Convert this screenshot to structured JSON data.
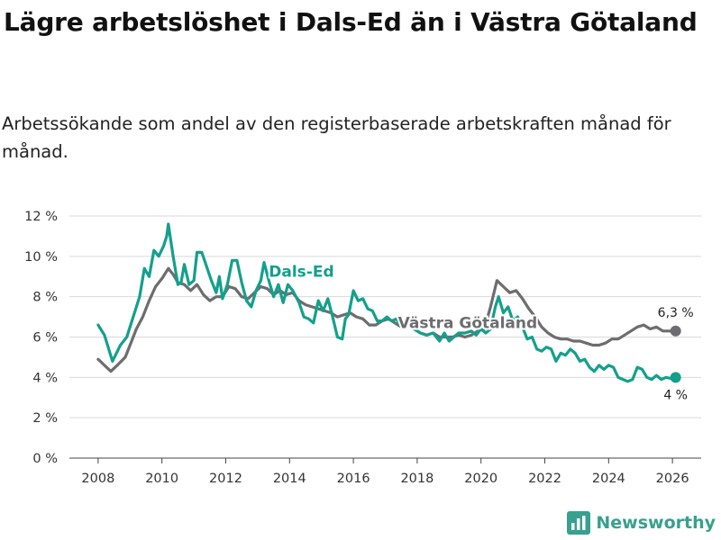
{
  "title": "Lägre arbetslöshet i Dals-Ed än i Västra Götaland",
  "subtitle": "Arbetssökande som andel av den registerbaserade arbetskraften månad för månad.",
  "brand": {
    "name": "Newsworthy",
    "icon": "bar-chart-logo-icon"
  },
  "colors": {
    "dals_ed": "#13a08c",
    "vastra_gotaland": "#6d6d70",
    "grid": "#d9d9d9",
    "brand": "#37a08e"
  },
  "chart_data": {
    "type": "line",
    "title": "Lägre arbetslöshet i Dals-Ed än i Västra Götaland",
    "xlabel": "",
    "ylabel": "",
    "xlim": [
      2007.1,
      2026.9
    ],
    "ylim": [
      0,
      12
    ],
    "grid": true,
    "x_ticks": [
      2008,
      2010,
      2012,
      2014,
      2016,
      2018,
      2020,
      2022,
      2024,
      2026
    ],
    "x_tick_labels": [
      "2008",
      "2010",
      "2012",
      "2014",
      "2016",
      "2018",
      "2020",
      "2022",
      "2024",
      "2026"
    ],
    "y_ticks": [
      0,
      2,
      4,
      6,
      8,
      10,
      12
    ],
    "y_tick_labels": [
      "0 %",
      "2 %",
      "4 %",
      "6 %",
      "8 %",
      "10 %",
      "12 %"
    ],
    "series": [
      {
        "name": "Dals-Ed",
        "label": "Dals-Ed",
        "color": "#13a08c",
        "end_label": "4 %",
        "points": [
          [
            2008.0,
            6.6
          ],
          [
            2008.2,
            6.1
          ],
          [
            2008.45,
            4.8
          ],
          [
            2008.7,
            5.6
          ],
          [
            2008.9,
            6.0
          ],
          [
            2009.1,
            7.0
          ],
          [
            2009.3,
            8.0
          ],
          [
            2009.45,
            9.4
          ],
          [
            2009.6,
            9.0
          ],
          [
            2009.75,
            10.3
          ],
          [
            2009.9,
            10.0
          ],
          [
            2010.05,
            10.5
          ],
          [
            2010.15,
            11.0
          ],
          [
            2010.2,
            11.6
          ],
          [
            2010.35,
            10.0
          ],
          [
            2010.5,
            8.6
          ],
          [
            2010.6,
            8.7
          ],
          [
            2010.7,
            9.6
          ],
          [
            2010.85,
            8.6
          ],
          [
            2011.0,
            8.8
          ],
          [
            2011.1,
            10.2
          ],
          [
            2011.25,
            10.2
          ],
          [
            2011.4,
            9.5
          ],
          [
            2011.55,
            8.8
          ],
          [
            2011.7,
            8.2
          ],
          [
            2011.8,
            9.0
          ],
          [
            2011.9,
            7.9
          ],
          [
            2012.05,
            8.6
          ],
          [
            2012.2,
            9.8
          ],
          [
            2012.35,
            9.8
          ],
          [
            2012.5,
            8.7
          ],
          [
            2012.65,
            7.8
          ],
          [
            2012.8,
            7.5
          ],
          [
            2012.95,
            8.3
          ],
          [
            2013.1,
            8.8
          ],
          [
            2013.2,
            9.7
          ],
          [
            2013.35,
            8.8
          ],
          [
            2013.5,
            8.0
          ],
          [
            2013.65,
            8.6
          ],
          [
            2013.8,
            7.7
          ],
          [
            2013.95,
            8.6
          ],
          [
            2014.1,
            8.3
          ],
          [
            2014.3,
            7.7
          ],
          [
            2014.45,
            7.0
          ],
          [
            2014.6,
            6.9
          ],
          [
            2014.75,
            6.7
          ],
          [
            2014.9,
            7.8
          ],
          [
            2015.05,
            7.3
          ],
          [
            2015.2,
            7.9
          ],
          [
            2015.35,
            7.0
          ],
          [
            2015.5,
            6.0
          ],
          [
            2015.65,
            5.9
          ],
          [
            2015.75,
            6.9
          ],
          [
            2015.85,
            7.1
          ],
          [
            2016.0,
            8.3
          ],
          [
            2016.15,
            7.8
          ],
          [
            2016.3,
            7.9
          ],
          [
            2016.45,
            7.4
          ],
          [
            2016.6,
            7.3
          ],
          [
            2016.75,
            6.8
          ],
          [
            2016.9,
            6.8
          ],
          [
            2017.05,
            7.0
          ],
          [
            2017.2,
            6.8
          ],
          [
            2017.35,
            6.9
          ],
          [
            2017.5,
            6.5
          ],
          [
            2017.7,
            6.6
          ],
          [
            2017.9,
            6.4
          ],
          [
            2018.1,
            6.2
          ],
          [
            2018.3,
            6.1
          ],
          [
            2018.5,
            6.2
          ],
          [
            2018.7,
            5.8
          ],
          [
            2018.85,
            6.2
          ],
          [
            2019.0,
            5.8
          ],
          [
            2019.15,
            6.0
          ],
          [
            2019.3,
            6.2
          ],
          [
            2019.5,
            6.2
          ],
          [
            2019.7,
            6.3
          ],
          [
            2019.85,
            6.1
          ],
          [
            2020.0,
            6.4
          ],
          [
            2020.15,
            6.2
          ],
          [
            2020.3,
            6.4
          ],
          [
            2020.45,
            7.5
          ],
          [
            2020.55,
            8.0
          ],
          [
            2020.7,
            7.2
          ],
          [
            2020.85,
            7.5
          ],
          [
            2021.0,
            6.8
          ],
          [
            2021.15,
            7.0
          ],
          [
            2021.3,
            6.5
          ],
          [
            2021.45,
            5.9
          ],
          [
            2021.6,
            6.0
          ],
          [
            2021.75,
            5.4
          ],
          [
            2021.9,
            5.3
          ],
          [
            2022.05,
            5.5
          ],
          [
            2022.2,
            5.4
          ],
          [
            2022.35,
            4.8
          ],
          [
            2022.5,
            5.2
          ],
          [
            2022.65,
            5.1
          ],
          [
            2022.8,
            5.4
          ],
          [
            2022.95,
            5.2
          ],
          [
            2023.1,
            4.8
          ],
          [
            2023.25,
            4.9
          ],
          [
            2023.4,
            4.5
          ],
          [
            2023.55,
            4.3
          ],
          [
            2023.7,
            4.6
          ],
          [
            2023.85,
            4.4
          ],
          [
            2024.0,
            4.6
          ],
          [
            2024.15,
            4.5
          ],
          [
            2024.3,
            4.0
          ],
          [
            2024.45,
            3.9
          ],
          [
            2024.6,
            3.8
          ],
          [
            2024.75,
            3.9
          ],
          [
            2024.9,
            4.5
          ],
          [
            2025.05,
            4.4
          ],
          [
            2025.2,
            4.0
          ],
          [
            2025.35,
            3.9
          ],
          [
            2025.5,
            4.1
          ],
          [
            2025.65,
            3.9
          ],
          [
            2025.8,
            4.0
          ],
          [
            2025.95,
            3.95
          ],
          [
            2026.1,
            4.0
          ]
        ]
      },
      {
        "name": "Västra Götaland",
        "label": "Västra Götaland",
        "color": "#6d6d70",
        "end_label": "6,3 %",
        "points": [
          [
            2008.0,
            4.9
          ],
          [
            2008.2,
            4.6
          ],
          [
            2008.4,
            4.3
          ],
          [
            2008.6,
            4.6
          ],
          [
            2008.85,
            5.0
          ],
          [
            2009.0,
            5.6
          ],
          [
            2009.2,
            6.4
          ],
          [
            2009.4,
            7.0
          ],
          [
            2009.6,
            7.8
          ],
          [
            2009.8,
            8.5
          ],
          [
            2010.0,
            8.9
          ],
          [
            2010.2,
            9.4
          ],
          [
            2010.35,
            9.1
          ],
          [
            2010.5,
            8.7
          ],
          [
            2010.7,
            8.6
          ],
          [
            2010.9,
            8.3
          ],
          [
            2011.1,
            8.6
          ],
          [
            2011.3,
            8.1
          ],
          [
            2011.5,
            7.8
          ],
          [
            2011.7,
            8.0
          ],
          [
            2011.9,
            8.0
          ],
          [
            2012.1,
            8.5
          ],
          [
            2012.3,
            8.4
          ],
          [
            2012.5,
            8.0
          ],
          [
            2012.7,
            7.9
          ],
          [
            2012.9,
            8.2
          ],
          [
            2013.1,
            8.5
          ],
          [
            2013.3,
            8.4
          ],
          [
            2013.5,
            8.1
          ],
          [
            2013.7,
            8.3
          ],
          [
            2013.9,
            8.1
          ],
          [
            2014.1,
            8.2
          ],
          [
            2014.3,
            7.8
          ],
          [
            2014.5,
            7.6
          ],
          [
            2014.7,
            7.5
          ],
          [
            2014.9,
            7.4
          ],
          [
            2015.1,
            7.3
          ],
          [
            2015.3,
            7.2
          ],
          [
            2015.5,
            7.0
          ],
          [
            2015.7,
            7.1
          ],
          [
            2015.9,
            7.2
          ],
          [
            2016.1,
            7.0
          ],
          [
            2016.3,
            6.9
          ],
          [
            2016.5,
            6.6
          ],
          [
            2016.7,
            6.6
          ],
          [
            2016.9,
            6.8
          ],
          [
            2017.1,
            6.9
          ],
          [
            2017.3,
            6.7
          ],
          [
            2017.5,
            6.5
          ],
          [
            2017.7,
            6.6
          ],
          [
            2017.9,
            6.4
          ],
          [
            2018.1,
            6.2
          ],
          [
            2018.3,
            6.1
          ],
          [
            2018.5,
            6.2
          ],
          [
            2018.7,
            6.0
          ],
          [
            2018.9,
            6.0
          ],
          [
            2019.1,
            6.0
          ],
          [
            2019.3,
            6.1
          ],
          [
            2019.5,
            6.0
          ],
          [
            2019.7,
            6.1
          ],
          [
            2019.9,
            6.3
          ],
          [
            2020.1,
            6.4
          ],
          [
            2020.3,
            7.5
          ],
          [
            2020.5,
            8.8
          ],
          [
            2020.7,
            8.5
          ],
          [
            2020.9,
            8.2
          ],
          [
            2021.1,
            8.3
          ],
          [
            2021.3,
            7.9
          ],
          [
            2021.5,
            7.4
          ],
          [
            2021.7,
            7.0
          ],
          [
            2021.9,
            6.5
          ],
          [
            2022.1,
            6.2
          ],
          [
            2022.3,
            6.0
          ],
          [
            2022.5,
            5.9
          ],
          [
            2022.7,
            5.9
          ],
          [
            2022.9,
            5.8
          ],
          [
            2023.1,
            5.8
          ],
          [
            2023.3,
            5.7
          ],
          [
            2023.5,
            5.6
          ],
          [
            2023.7,
            5.6
          ],
          [
            2023.9,
            5.7
          ],
          [
            2024.1,
            5.9
          ],
          [
            2024.3,
            5.9
          ],
          [
            2024.5,
            6.1
          ],
          [
            2024.7,
            6.3
          ],
          [
            2024.9,
            6.5
          ],
          [
            2025.1,
            6.6
          ],
          [
            2025.3,
            6.4
          ],
          [
            2025.5,
            6.5
          ],
          [
            2025.7,
            6.3
          ],
          [
            2025.9,
            6.3
          ],
          [
            2026.1,
            6.3
          ]
        ]
      }
    ]
  }
}
